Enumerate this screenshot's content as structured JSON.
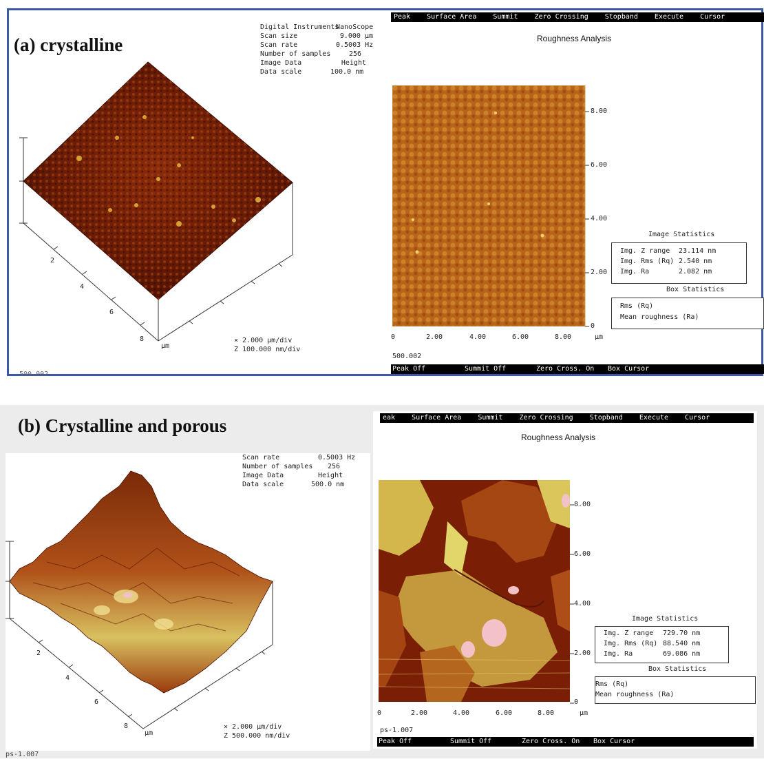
{
  "panel_a": {
    "title": "(a) crystalline",
    "info": {
      "lines": [
        {
          "k": "Digital Instruments",
          "v": "NanoScope"
        },
        {
          "k": "Scan size",
          "v": "9.000 µm"
        },
        {
          "k": "Scan rate",
          "v": "0.5003 Hz"
        },
        {
          "k": "Number of samples",
          "v": "256"
        },
        {
          "k": "Image Data",
          "v": "Height"
        },
        {
          "k": "Data scale",
          "v": "100.0 nm"
        }
      ]
    },
    "menu": [
      "Peak",
      "Surface Area",
      "Summit",
      "Zero Crossing",
      "Stopband",
      "Execute",
      "Cursor"
    ],
    "analysis_title": "Roughness Analysis",
    "y_ticks": [
      "8.00",
      "6.00",
      "4.00",
      "2.00",
      "0"
    ],
    "x_ticks": [
      "0",
      "2.00",
      "4.00",
      "6.00",
      "8.00",
      "µm"
    ],
    "axis_ticks_3d": [
      "2",
      "4",
      "6",
      "8",
      "µm"
    ],
    "scale_x": "× 2.000 µm/div",
    "scale_z": "Z 100.000 nm/div",
    "image_stats_title": "Image Statistics",
    "image_stats": [
      {
        "label": "Img. Z range",
        "value": "23.114 nm"
      },
      {
        "label": "Img. Rms (Rq)",
        "value": "2.540 nm"
      },
      {
        "label": "Img. Ra",
        "value": "2.082 nm"
      }
    ],
    "box_stats_title": "Box Statistics",
    "box_stats": [
      "Rms (Rq)",
      "Mean roughness (Ra)"
    ],
    "file_label": "500.002",
    "corner_label": "500.002",
    "status": [
      "Peak Off",
      "Summit Off",
      "Zero Cross. On",
      "Box Cursor"
    ],
    "colors": {
      "frame": "#3b58a8",
      "surface_dark": "#5a1505",
      "surface_light": "#c8801f"
    }
  },
  "panel_b": {
    "title": "(b) Crystalline and porous",
    "info": {
      "lines": [
        {
          "k": "Scan rate",
          "v": "0.5003 Hz"
        },
        {
          "k": "Number of samples",
          "v": "256"
        },
        {
          "k": "Image Data",
          "v": "Height"
        },
        {
          "k": "Data scale",
          "v": "500.0 nm"
        }
      ]
    },
    "menu": [
      "eak",
      "Surface Area",
      "Summit",
      "Zero Crossing",
      "Stopband",
      "Execute",
      "Cursor"
    ],
    "analysis_title": "Roughness Analysis",
    "y_ticks": [
      "8.00",
      "6.00",
      "4.00",
      "2.00",
      "0"
    ],
    "x_ticks": [
      "0",
      "2.00",
      "4.00",
      "6.00",
      "8.00",
      "µm"
    ],
    "axis_ticks_3d": [
      "2",
      "4",
      "6",
      "8",
      "µm"
    ],
    "scale_x": "× 2.000 µm/div",
    "scale_z": "Z 500.000 nm/div",
    "image_stats_title": "Image Statistics",
    "image_stats": [
      {
        "label": "Img. Z range",
        "value": "729.70 nm"
      },
      {
        "label": "Img. Rms (Rq)",
        "value": "88.540 nm"
      },
      {
        "label": "Img. Ra",
        "value": "69.086 nm"
      }
    ],
    "box_stats_title": "Box Statistics",
    "box_stats": [
      "Rms (Rq)",
      "Mean roughness (Ra)"
    ],
    "file_label": "ps-1.007",
    "corner_label": "ps-1.007",
    "status": [
      "Peak Off",
      "Summit Off",
      "Zero Cross. On",
      "Box Cursor"
    ],
    "colors": {
      "surface_dark": "#6a1a05",
      "surface_light": "#e8e070",
      "highlight": "#f2c2c8"
    }
  }
}
